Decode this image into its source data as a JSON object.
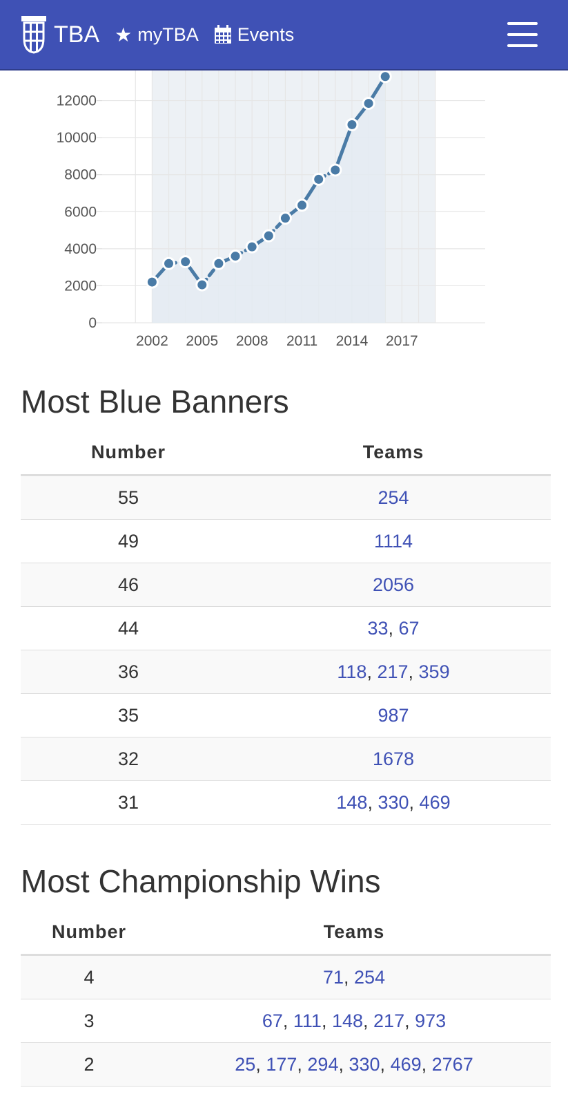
{
  "navbar": {
    "brand": "TBA",
    "links": [
      {
        "label": "myTBA",
        "icon": "star-icon"
      },
      {
        "label": "Events",
        "icon": "calendar-icon"
      }
    ],
    "menu_icon": "hamburger-menu-icon",
    "background": "#3f51b5"
  },
  "chart_data": {
    "type": "line",
    "x": [
      2002,
      2003,
      2004,
      2005,
      2006,
      2007,
      2008,
      2009,
      2010,
      2011,
      2012,
      2013,
      2014,
      2015,
      2016
    ],
    "y": [
      2200,
      3200,
      3300,
      2050,
      3200,
      3600,
      4100,
      4700,
      5650,
      6350,
      7750,
      8250,
      10700,
      11850,
      13300
    ],
    "x_ticks": [
      "2002",
      "2005",
      "2008",
      "2011",
      "2014",
      "2017"
    ],
    "y_ticks": [
      "0",
      "2000",
      "4000",
      "6000",
      "8000",
      "10000",
      "12000"
    ],
    "xlim": [
      1999,
      2022
    ],
    "ylim": [
      0,
      14000
    ],
    "x_label": "",
    "y_label": "",
    "grid": true,
    "line_color": "#4a7ba6",
    "shaded_x_range": [
      2002,
      2019
    ]
  },
  "blue_banners": {
    "title": "Most Blue Banners",
    "headers": [
      "Number",
      "Teams"
    ],
    "rows": [
      {
        "number": "55",
        "teams": [
          "254"
        ]
      },
      {
        "number": "49",
        "teams": [
          "1114"
        ]
      },
      {
        "number": "46",
        "teams": [
          "2056"
        ]
      },
      {
        "number": "44",
        "teams": [
          "33",
          "67"
        ]
      },
      {
        "number": "36",
        "teams": [
          "118",
          "217",
          "359"
        ]
      },
      {
        "number": "35",
        "teams": [
          "987"
        ]
      },
      {
        "number": "32",
        "teams": [
          "1678"
        ]
      },
      {
        "number": "31",
        "teams": [
          "148",
          "330",
          "469"
        ]
      }
    ]
  },
  "championship_wins": {
    "title": "Most Championship Wins",
    "headers": [
      "Number",
      "Teams"
    ],
    "rows": [
      {
        "number": "4",
        "teams": [
          "71",
          "254"
        ]
      },
      {
        "number": "3",
        "teams": [
          "67",
          "111",
          "148",
          "217",
          "973"
        ]
      },
      {
        "number": "2",
        "teams": [
          "25",
          "177",
          "294",
          "330",
          "469",
          "2767"
        ]
      }
    ]
  }
}
